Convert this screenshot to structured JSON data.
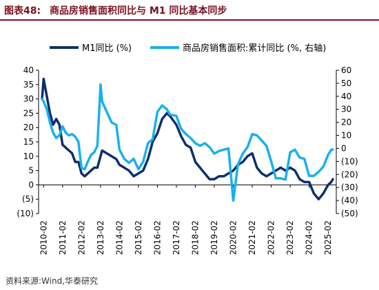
{
  "header": {
    "figure_label": "图表48:",
    "title": "商品房销售面积同比与 M1 同比基本同步"
  },
  "source": "资料来源:Wind,华泰研究",
  "chart_data": {
    "type": "line",
    "x_tick_labels": [
      "2010-02",
      "2011-02",
      "2012-02",
      "2013-02",
      "2014-02",
      "2015-02",
      "2016-02",
      "2017-02",
      "2018-02",
      "2019-02",
      "2020-02",
      "2021-02",
      "2022-02",
      "2023-02",
      "2024-02",
      "2025-02"
    ],
    "y_left": {
      "ticks": [
        "40",
        "35",
        "30",
        "25",
        "20",
        "15",
        "10",
        "5",
        "0",
        "(5)",
        "(10)"
      ],
      "range": [
        -10,
        40
      ]
    },
    "y_right": {
      "ticks": [
        "60",
        "50",
        "40",
        "30",
        "20",
        "10",
        "0",
        "(10)",
        "(20)",
        "(30)",
        "(40)",
        "(50)"
      ],
      "range": [
        -50,
        60
      ]
    },
    "legend": {
      "placement": "top"
    },
    "series": [
      {
        "name": "M1同比 (%)",
        "axis": "left",
        "color": "#0d2f6e",
        "points": [
          [
            "2010-01",
            30
          ],
          [
            "2010-02",
            37
          ],
          [
            "2010-04",
            31
          ],
          [
            "2010-06",
            25
          ],
          [
            "2010-08",
            21
          ],
          [
            "2010-10",
            23
          ],
          [
            "2010-12",
            21
          ],
          [
            "2011-02",
            14
          ],
          [
            "2011-04",
            13
          ],
          [
            "2011-06",
            12
          ],
          [
            "2011-08",
            11
          ],
          [
            "2011-10",
            8
          ],
          [
            "2011-12",
            8
          ],
          [
            "2012-02",
            4
          ],
          [
            "2012-04",
            3
          ],
          [
            "2012-06",
            4
          ],
          [
            "2012-08",
            5
          ],
          [
            "2012-10",
            6
          ],
          [
            "2012-12",
            6
          ],
          [
            "2013-02",
            10
          ],
          [
            "2013-03",
            12
          ],
          [
            "2013-06",
            11
          ],
          [
            "2013-09",
            10
          ],
          [
            "2013-12",
            9
          ],
          [
            "2014-02",
            7
          ],
          [
            "2014-05",
            6
          ],
          [
            "2014-08",
            5
          ],
          [
            "2014-11",
            3
          ],
          [
            "2015-02",
            4
          ],
          [
            "2015-05",
            5
          ],
          [
            "2015-08",
            9
          ],
          [
            "2015-11",
            15
          ],
          [
            "2016-02",
            18
          ],
          [
            "2016-05",
            23
          ],
          [
            "2016-08",
            25
          ],
          [
            "2016-10",
            24
          ],
          [
            "2017-02",
            21
          ],
          [
            "2017-05",
            17
          ],
          [
            "2017-08",
            14
          ],
          [
            "2017-11",
            13
          ],
          [
            "2018-02",
            8
          ],
          [
            "2018-05",
            6
          ],
          [
            "2018-08",
            4
          ],
          [
            "2018-11",
            2
          ],
          [
            "2019-02",
            2
          ],
          [
            "2019-05",
            3
          ],
          [
            "2019-08",
            3
          ],
          [
            "2019-11",
            4
          ],
          [
            "2020-02",
            5
          ],
          [
            "2020-05",
            7
          ],
          [
            "2020-08",
            8
          ],
          [
            "2020-11",
            10
          ],
          [
            "2021-02",
            11
          ],
          [
            "2021-05",
            6
          ],
          [
            "2021-08",
            4
          ],
          [
            "2021-11",
            3
          ],
          [
            "2022-02",
            4
          ],
          [
            "2022-05",
            5
          ],
          [
            "2022-08",
            6
          ],
          [
            "2022-11",
            5
          ],
          [
            "2023-02",
            6
          ],
          [
            "2023-05",
            5
          ],
          [
            "2023-08",
            2
          ],
          [
            "2023-11",
            1
          ],
          [
            "2024-02",
            1
          ],
          [
            "2024-05",
            -3
          ],
          [
            "2024-08",
            -5
          ],
          [
            "2024-11",
            -3
          ],
          [
            "2025-02",
            0
          ],
          [
            "2025-04",
            1
          ],
          [
            "2025-05",
            2
          ]
        ]
      },
      {
        "name": "商品房销售面积:累计同比 (%, 右轴)",
        "axis": "right",
        "color": "#19b0ec",
        "points": [
          [
            "2010-01",
            38
          ],
          [
            "2010-02",
            36
          ],
          [
            "2010-04",
            30
          ],
          [
            "2010-06",
            20
          ],
          [
            "2010-08",
            12
          ],
          [
            "2010-10",
            8
          ],
          [
            "2010-12",
            10
          ],
          [
            "2011-02",
            17
          ],
          [
            "2011-04",
            12
          ],
          [
            "2011-06",
            10
          ],
          [
            "2011-08",
            11
          ],
          [
            "2011-10",
            9
          ],
          [
            "2011-12",
            5
          ],
          [
            "2012-02",
            -15
          ],
          [
            "2012-04",
            -16
          ],
          [
            "2012-06",
            -10
          ],
          [
            "2012-08",
            -5
          ],
          [
            "2012-10",
            -3
          ],
          [
            "2012-12",
            2
          ],
          [
            "2013-02",
            49
          ],
          [
            "2013-03",
            36
          ],
          [
            "2013-06",
            28
          ],
          [
            "2013-09",
            20
          ],
          [
            "2013-12",
            18
          ],
          [
            "2014-02",
            -1
          ],
          [
            "2014-05",
            -8
          ],
          [
            "2014-08",
            -11
          ],
          [
            "2014-11",
            -8
          ],
          [
            "2015-02",
            -16
          ],
          [
            "2015-05",
            -10
          ],
          [
            "2015-08",
            4
          ],
          [
            "2015-11",
            7
          ],
          [
            "2016-02",
            28
          ],
          [
            "2016-05",
            33
          ],
          [
            "2016-08",
            30
          ],
          [
            "2016-10",
            26
          ],
          [
            "2017-02",
            25
          ],
          [
            "2017-05",
            15
          ],
          [
            "2017-08",
            11
          ],
          [
            "2017-11",
            8
          ],
          [
            "2018-02",
            4
          ],
          [
            "2018-05",
            2
          ],
          [
            "2018-08",
            4
          ],
          [
            "2018-11",
            1
          ],
          [
            "2019-02",
            -4
          ],
          [
            "2019-05",
            -2
          ],
          [
            "2019-08",
            -1
          ],
          [
            "2019-11",
            0
          ],
          [
            "2020-02",
            -40
          ],
          [
            "2020-05",
            -12
          ],
          [
            "2020-08",
            -4
          ],
          [
            "2020-11",
            1
          ],
          [
            "2021-02",
            11
          ],
          [
            "2021-05",
            10
          ],
          [
            "2021-08",
            6
          ],
          [
            "2021-11",
            2
          ],
          [
            "2022-02",
            -10
          ],
          [
            "2022-05",
            -23
          ],
          [
            "2022-08",
            -23
          ],
          [
            "2022-11",
            -24
          ],
          [
            "2023-02",
            -3
          ],
          [
            "2023-05",
            -1
          ],
          [
            "2023-08",
            -7
          ],
          [
            "2023-11",
            -8
          ],
          [
            "2024-02",
            -21
          ],
          [
            "2024-05",
            -21
          ],
          [
            "2024-08",
            -18
          ],
          [
            "2024-11",
            -14
          ],
          [
            "2025-02",
            -5
          ],
          [
            "2025-04",
            -1
          ],
          [
            "2025-05",
            -1
          ]
        ]
      }
    ]
  }
}
